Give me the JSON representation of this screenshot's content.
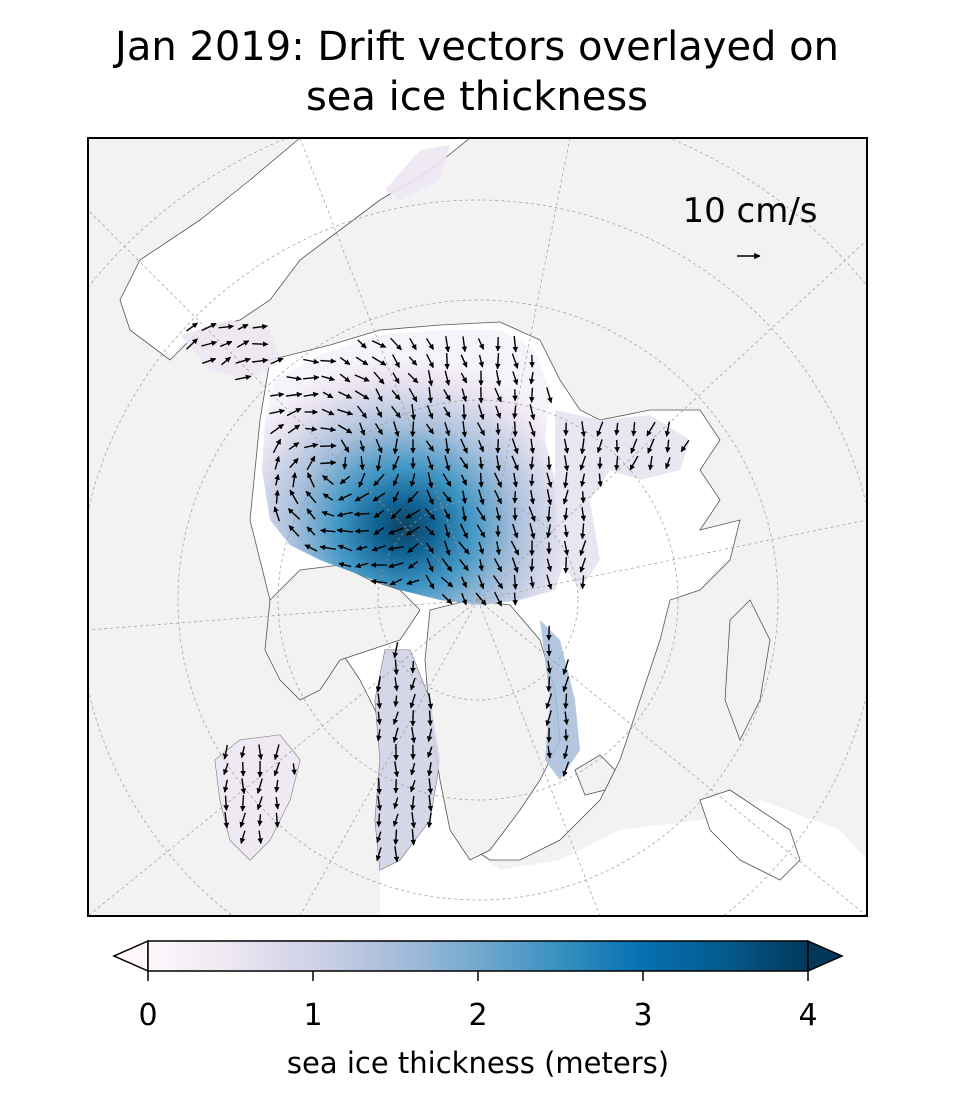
{
  "title": {
    "line1": "Jan 2019: Drift vectors overlayed on",
    "line2": "sea ice thickness"
  },
  "quiver_key": {
    "label": "10 cm/s"
  },
  "colorbar": {
    "label": "sea ice thickness (meters)",
    "ticks": [
      "0",
      "1",
      "2",
      "3",
      "4"
    ],
    "min": 0,
    "max": 4,
    "extend": "both",
    "colormap": [
      "#fff7fb",
      "#ece7f2",
      "#d0d1e6",
      "#a6bddb",
      "#74a9cf",
      "#3690c0",
      "#0570b0",
      "#045a8d",
      "#023858"
    ]
  },
  "colors": {
    "land": "#f2f2f2",
    "ocean": "#ffffff",
    "coastline": "#555555",
    "gridline": "#999999",
    "arrow": "#000000"
  }
}
